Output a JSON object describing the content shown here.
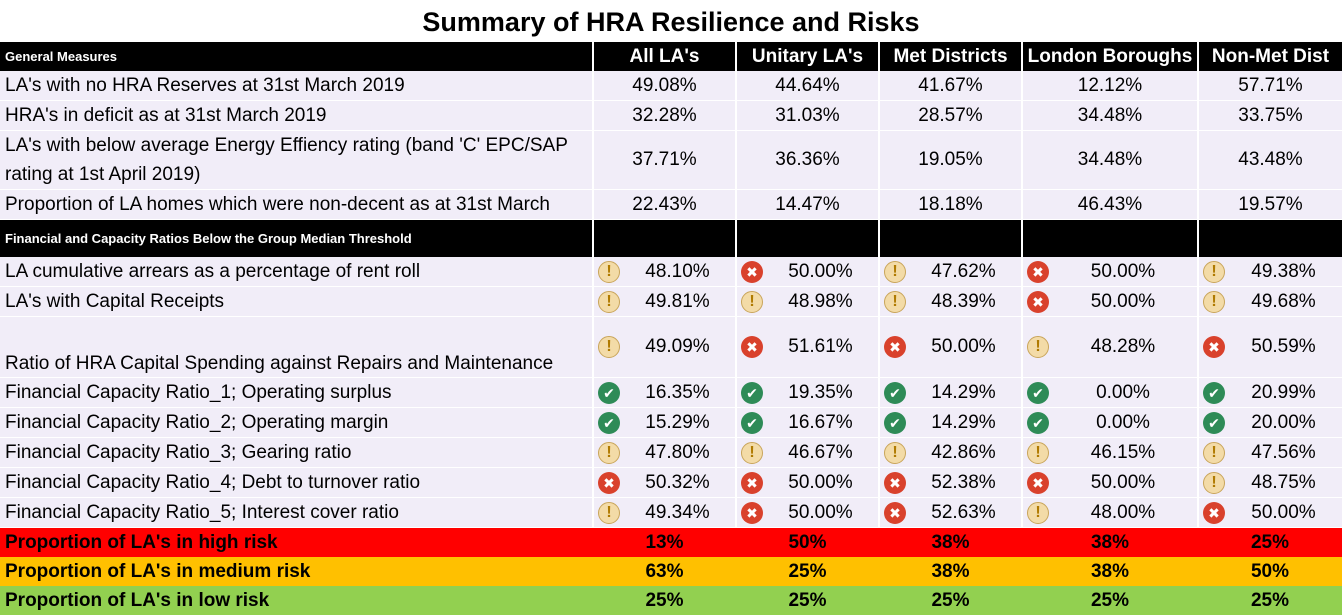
{
  "title": "Summary of HRA Resilience and Risks",
  "columns": [
    "All LA's",
    "Unitary LA's",
    "Met Districts",
    "London Boroughs",
    "Non-Met Dist"
  ],
  "section1": {
    "label": "General Measures",
    "rows": [
      {
        "label": "LA's with no HRA Reserves at 31st March 2019",
        "values": [
          "49.08%",
          "44.64%",
          "41.67%",
          "12.12%",
          "57.71%"
        ]
      },
      {
        "label": "HRA's in deficit as at 31st March 2019",
        "values": [
          "32.28%",
          "31.03%",
          "28.57%",
          "34.48%",
          "33.75%"
        ]
      },
      {
        "label": "LA's with below average Energy Effiency rating (band 'C' EPC/SAP rating at 1st April 2019)",
        "values": [
          "37.71%",
          "36.36%",
          "19.05%",
          "34.48%",
          "43.48%"
        ]
      },
      {
        "label": "Proportion of LA homes which were non-decent as at 31st March",
        "values": [
          "22.43%",
          "14.47%",
          "18.18%",
          "46.43%",
          "19.57%"
        ]
      }
    ]
  },
  "section2": {
    "label": "Financial and Capacity Ratios Below the Group Median Threshold",
    "rows": [
      {
        "label": "LA cumulative arrears as a percentage of rent roll",
        "values": [
          "48.10%",
          "50.00%",
          "47.62%",
          "50.00%",
          "49.38%"
        ],
        "icons": [
          "warn",
          "cross",
          "warn",
          "cross",
          "warn"
        ]
      },
      {
        "label": "LA's with Capital Receipts",
        "values": [
          "49.81%",
          "48.98%",
          "48.39%",
          "50.00%",
          "49.68%"
        ],
        "icons": [
          "warn",
          "warn",
          "warn",
          "cross",
          "warn"
        ]
      },
      {
        "label": "Ratio of HRA Capital Spending against Repairs and Maintenance",
        "values": [
          "49.09%",
          "51.61%",
          "50.00%",
          "48.28%",
          "50.59%"
        ],
        "icons": [
          "warn",
          "cross",
          "cross",
          "warn",
          "cross"
        ]
      },
      {
        "label": "Financial Capacity Ratio_1; Operating surplus",
        "values": [
          "16.35%",
          "19.35%",
          "14.29%",
          "0.00%",
          "20.99%"
        ],
        "icons": [
          "tick",
          "tick",
          "tick",
          "tick",
          "tick"
        ]
      },
      {
        "label": "Financial Capacity Ratio_2; Operating margin",
        "values": [
          "15.29%",
          "16.67%",
          "14.29%",
          "0.00%",
          "20.00%"
        ],
        "icons": [
          "tick",
          "tick",
          "tick",
          "tick",
          "tick"
        ]
      },
      {
        "label": "Financial Capacity Ratio_3; Gearing ratio",
        "values": [
          "47.80%",
          "46.67%",
          "42.86%",
          "46.15%",
          "47.56%"
        ],
        "icons": [
          "warn",
          "warn",
          "warn",
          "warn",
          "warn"
        ]
      },
      {
        "label": "Financial Capacity Ratio_4; Debt to turnover ratio",
        "values": [
          "50.32%",
          "50.00%",
          "52.38%",
          "50.00%",
          "48.75%"
        ],
        "icons": [
          "cross",
          "cross",
          "cross",
          "cross",
          "warn"
        ]
      },
      {
        "label": "Financial Capacity Ratio_5; Interest cover ratio",
        "values": [
          "49.34%",
          "50.00%",
          "52.63%",
          "48.00%",
          "50.00%"
        ],
        "icons": [
          "warn",
          "cross",
          "cross",
          "warn",
          "cross"
        ]
      }
    ]
  },
  "risk": [
    {
      "label": "Proportion of LA's in high risk",
      "values": [
        "13%",
        "50%",
        "38%",
        "38%",
        "25%"
      ],
      "color": "#ff0000"
    },
    {
      "label": "Proportion of LA's in medium risk",
      "values": [
        "63%",
        "25%",
        "38%",
        "38%",
        "50%"
      ],
      "color": "#ffc000"
    },
    {
      "label": "Proportion of LA's in low risk",
      "values": [
        "25%",
        "25%",
        "25%",
        "25%",
        "25%"
      ],
      "color": "#92d050"
    }
  ]
}
